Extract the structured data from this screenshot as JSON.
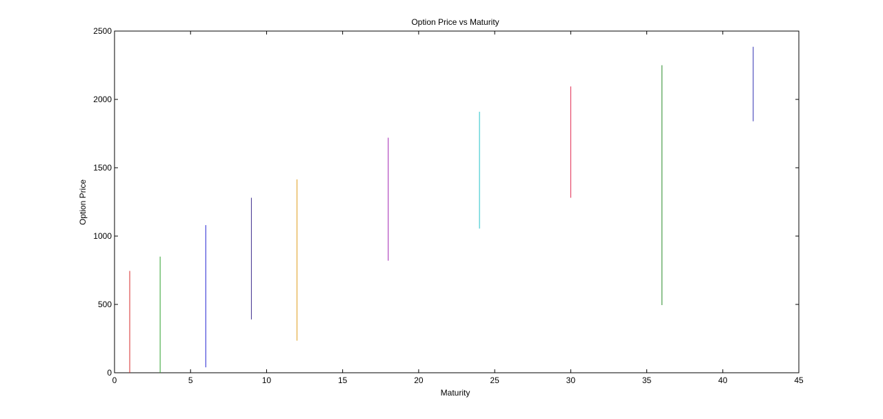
{
  "chart_data": {
    "type": "line",
    "title": "Option Price vs Maturity",
    "xlabel": "Maturity",
    "ylabel": "Option Price",
    "xlim": [
      0,
      45
    ],
    "ylim": [
      0,
      2500
    ],
    "xticks": [
      0,
      5,
      10,
      15,
      20,
      25,
      30,
      35,
      40,
      45
    ],
    "yticks": [
      0,
      500,
      1000,
      1500,
      2000,
      2500
    ],
    "grid": false,
    "series": [
      {
        "x": 1,
        "low": 0,
        "high": 745,
        "color": "#d62728"
      },
      {
        "x": 3,
        "low": 0,
        "high": 850,
        "color": "#2ca02c"
      },
      {
        "x": 6,
        "low": 40,
        "high": 1080,
        "color": "#1f1fd1"
      },
      {
        "x": 9,
        "low": 390,
        "high": 1280,
        "color": "#3b2a8a"
      },
      {
        "x": 12,
        "low": 235,
        "high": 1415,
        "color": "#e0a020"
      },
      {
        "x": 18,
        "low": 820,
        "high": 1720,
        "color": "#a020b0"
      },
      {
        "x": 24,
        "low": 1055,
        "high": 1910,
        "color": "#20c0c8"
      },
      {
        "x": 30,
        "low": 1280,
        "high": 2095,
        "color": "#e0204a"
      },
      {
        "x": 36,
        "low": 495,
        "high": 2250,
        "color": "#2a8a2a"
      },
      {
        "x": 42,
        "low": 1840,
        "high": 2385,
        "color": "#2a2ab0"
      }
    ]
  }
}
